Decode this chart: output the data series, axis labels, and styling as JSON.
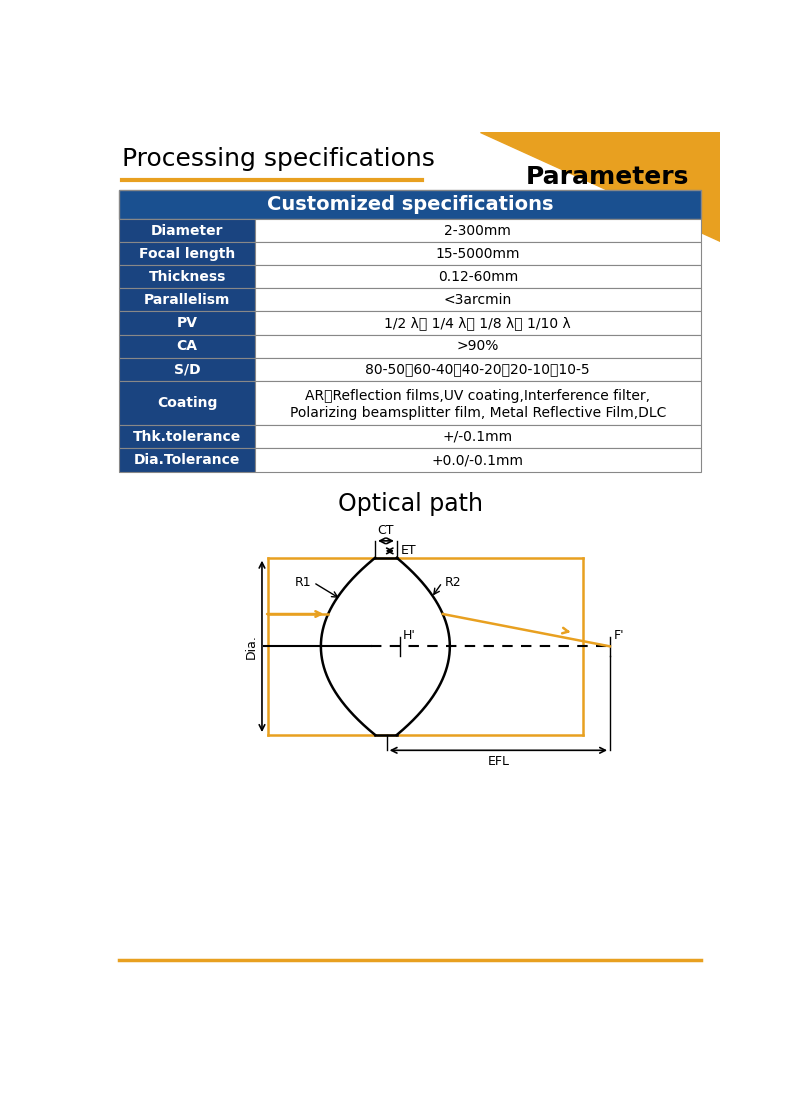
{
  "title_left": "Processing specifications",
  "title_right": "Parameters",
  "header": "Customized specifications",
  "table_rows": [
    [
      "Diameter",
      "2-300mm"
    ],
    [
      "Focal length",
      "15-5000mm"
    ],
    [
      "Thickness",
      "0.12-60mm"
    ],
    [
      "Parallelism",
      "<3arcmin"
    ],
    [
      "PV",
      "1/2 λ、 1/4 λ、 1/8 λ、 1/10 λ"
    ],
    [
      "CA",
      ">90%"
    ],
    [
      "S/D",
      "80-50、60-40、40-20、20-10、10-5"
    ],
    [
      "Coating",
      "AR、Reflection films,UV coating,Interference filter,\nPolarizing beamsplitter film, Metal Reflective Film,DLC"
    ],
    [
      "Thk.tolerance",
      "+/-0.1mm"
    ],
    [
      "Dia.Tolerance",
      "+0.0/-0.1mm"
    ]
  ],
  "optical_path_title": "Optical path",
  "dark_blue": "#1a4480",
  "orange": "#E8A020",
  "white": "#ffffff",
  "black": "#000000",
  "header_bg": "#1a5090",
  "row_label_bg": "#1a4480",
  "border_color": "#888888"
}
